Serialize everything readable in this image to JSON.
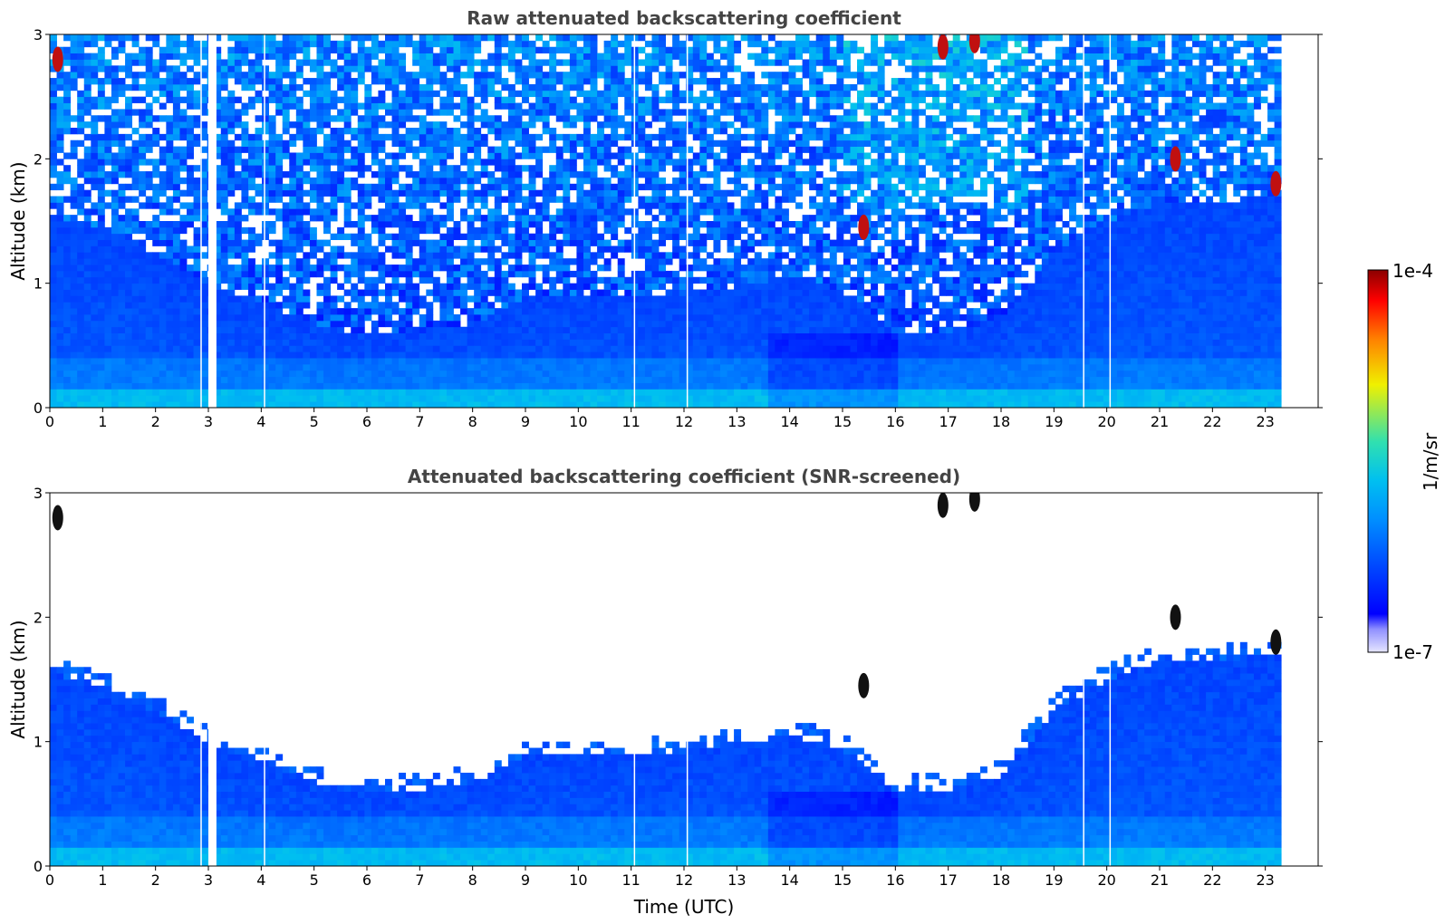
{
  "chart_data": [
    {
      "type": "heatmap",
      "title": "Raw attenuated backscattering coefficient",
      "ylabel": "Altitude (km)",
      "xlim": [
        0,
        24
      ],
      "ylim": [
        0,
        3
      ],
      "xticks": [
        "0",
        "1",
        "2",
        "3",
        "4",
        "5",
        "6",
        "7",
        "8",
        "9",
        "10",
        "11",
        "12",
        "13",
        "14",
        "15",
        "16",
        "17",
        "18",
        "19",
        "20",
        "21",
        "22",
        "23"
      ],
      "yticks": [
        "0",
        "1",
        "2",
        "3"
      ],
      "data_end_time": 23.3,
      "gaps": [
        2.85,
        3.0,
        3.05,
        4.05,
        11.05,
        12.05,
        19.55,
        20.05
      ],
      "boundary_layer_top_km": [
        {
          "t": 0,
          "h": 1.55
        },
        {
          "t": 1,
          "h": 1.45
        },
        {
          "t": 2,
          "h": 1.25
        },
        {
          "t": 3,
          "h": 1.0
        },
        {
          "t": 4,
          "h": 0.85
        },
        {
          "t": 5,
          "h": 0.68
        },
        {
          "t": 6,
          "h": 0.58
        },
        {
          "t": 7,
          "h": 0.62
        },
        {
          "t": 8,
          "h": 0.68
        },
        {
          "t": 9,
          "h": 0.88
        },
        {
          "t": 10,
          "h": 0.9
        },
        {
          "t": 11,
          "h": 0.9
        },
        {
          "t": 12,
          "h": 0.92
        },
        {
          "t": 13,
          "h": 0.98
        },
        {
          "t": 14,
          "h": 1.05
        },
        {
          "t": 15,
          "h": 0.95
        },
        {
          "t": 16,
          "h": 0.6
        },
        {
          "t": 17,
          "h": 0.62
        },
        {
          "t": 18,
          "h": 0.72
        },
        {
          "t": 19,
          "h": 1.25
        },
        {
          "t": 20,
          "h": 1.5
        },
        {
          "t": 21,
          "h": 1.65
        },
        {
          "t": 22,
          "h": 1.65
        },
        {
          "t": 23,
          "h": 1.7
        }
      ],
      "cloud_features": [
        {
          "t": 0.15,
          "h": 2.8
        },
        {
          "t": 15.4,
          "h": 1.45
        },
        {
          "t": 16.9,
          "h": 2.9
        },
        {
          "t": 17.5,
          "h": 2.95
        },
        {
          "t": 21.3,
          "h": 2.0
        },
        {
          "t": 23.2,
          "h": 1.8
        }
      ]
    },
    {
      "type": "heatmap",
      "title": "Attenuated backscattering coefficient (SNR-screened)",
      "xlabel": "Time (UTC)",
      "ylabel": "Altitude (km)",
      "xlim": [
        0,
        24
      ],
      "ylim": [
        0,
        3
      ],
      "xticks": [
        "0",
        "1",
        "2",
        "3",
        "4",
        "5",
        "6",
        "7",
        "8",
        "9",
        "10",
        "11",
        "12",
        "13",
        "14",
        "15",
        "16",
        "17",
        "18",
        "19",
        "20",
        "21",
        "22",
        "23"
      ],
      "yticks": [
        "0",
        "1",
        "2",
        "3"
      ],
      "screened": true
    }
  ],
  "colorbar": {
    "label": "1/m/sr",
    "max_label": "1e-4",
    "min_label": "1e-7",
    "scale": "log",
    "colors": [
      "#e6e6ff",
      "#0000ff",
      "#00b0ff",
      "#30e0b0",
      "#f0f000",
      "#ff8000",
      "#ff0000",
      "#8b0000"
    ]
  }
}
